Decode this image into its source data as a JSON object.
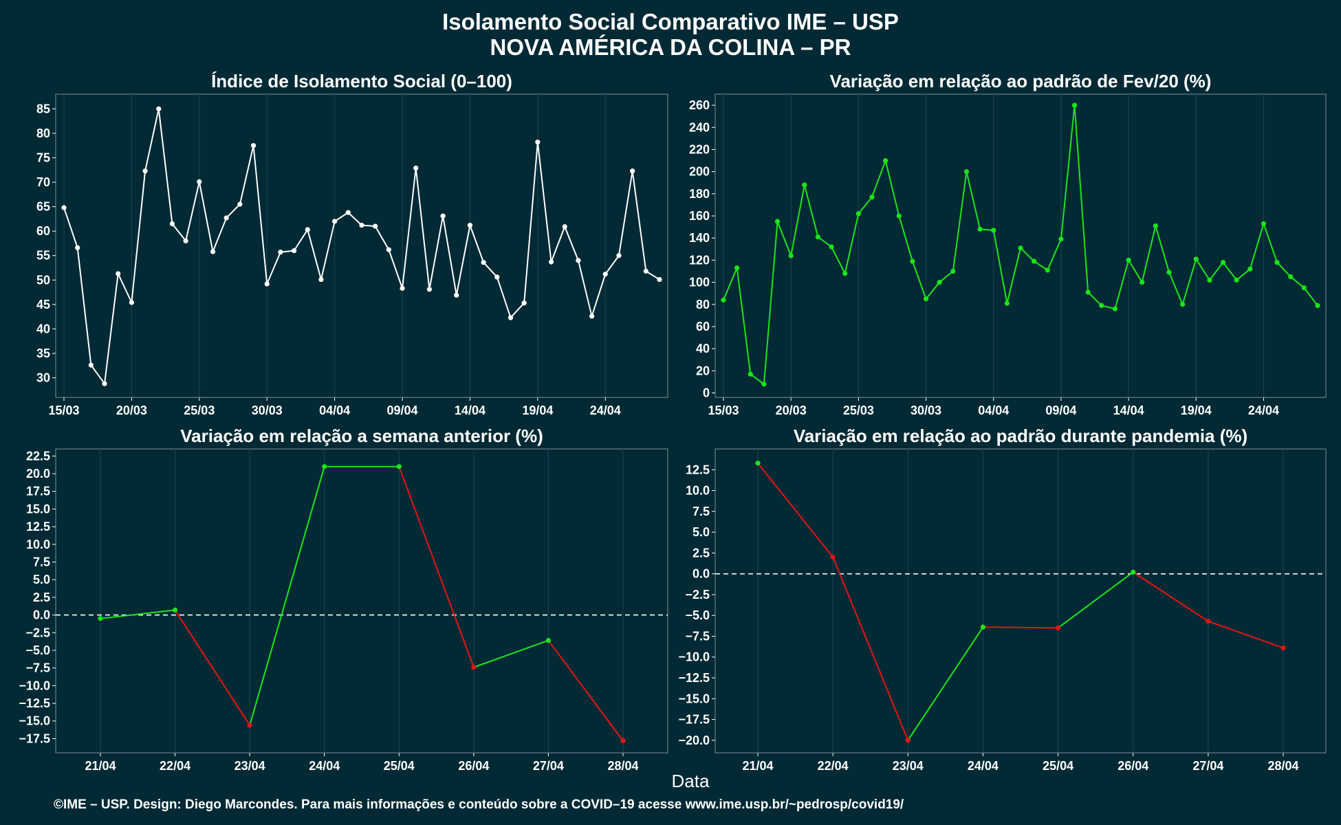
{
  "page": {
    "title_line1": "Isolamento Social Comparativo IME – USP",
    "title_line2": "NOVA AMÉRICA DA COLINA – PR",
    "x_axis_label": "Data",
    "footer": "©IME – USP. Design: Diego Marcondes. Para mais informações e conteúdo sobre a COVID–19 acesse www.ime.usp.br/~pedrosp/covid19/"
  },
  "colors": {
    "background": "#022a35",
    "panel": "#022a35",
    "panel_border": "#6a7f86",
    "grid": "#16414b",
    "white_series": "#ffffff",
    "green_series": "#19e619",
    "red_series": "#e61414",
    "zero_line": "#ffffff"
  },
  "chart_data": [
    {
      "id": "isolamento",
      "type": "line",
      "title": "Índice de Isolamento Social (0–100)",
      "x": [
        "15/03",
        "16/03",
        "17/03",
        "18/03",
        "19/03",
        "20/03",
        "21/03",
        "22/03",
        "23/03",
        "24/03",
        "25/03",
        "26/03",
        "27/03",
        "28/03",
        "29/03",
        "30/03",
        "31/03",
        "01/04",
        "02/04",
        "03/04",
        "04/04",
        "05/04",
        "06/04",
        "07/04",
        "08/04",
        "09/04",
        "10/04",
        "11/04",
        "12/04",
        "13/04",
        "14/04",
        "15/04",
        "16/04",
        "17/04",
        "18/04",
        "19/04",
        "20/04",
        "21/04",
        "22/04",
        "23/04",
        "24/04",
        "25/04",
        "26/04",
        "27/04",
        "28/04"
      ],
      "x_ticks": [
        "15/03",
        "20/03",
        "25/03",
        "30/03",
        "04/04",
        "09/04",
        "14/04",
        "19/04",
        "24/04"
      ],
      "series": [
        {
          "color": "white",
          "values": [
            64.8,
            56.6,
            32.6,
            28.8,
            51.3,
            45.4,
            72.3,
            85.0,
            61.5,
            58.0,
            70.1,
            55.8,
            62.7,
            65.5,
            77.5,
            49.2,
            55.7,
            56.0,
            60.3,
            50.1,
            62.0,
            63.8,
            61.2,
            61.0,
            56.2,
            48.3,
            72.9,
            48.1,
            63.1,
            46.9,
            61.2,
            53.6,
            50.6,
            42.3,
            45.3,
            78.2,
            53.7,
            60.9,
            54.0,
            42.6,
            51.2,
            55.0,
            72.3,
            51.8,
            50.1
          ]
        }
      ],
      "ylim": [
        26,
        88
      ],
      "y_ticks": [
        30,
        35,
        40,
        45,
        50,
        55,
        60,
        65,
        70,
        75,
        80,
        85
      ],
      "grid": "vertical"
    },
    {
      "id": "fev20",
      "type": "line",
      "title": "Variação em relação ao padrão de Fev/20 (%)",
      "x": [
        "15/03",
        "16/03",
        "17/03",
        "18/03",
        "19/03",
        "20/03",
        "21/03",
        "22/03",
        "23/03",
        "24/03",
        "25/03",
        "26/03",
        "27/03",
        "28/03",
        "29/03",
        "30/03",
        "31/03",
        "01/04",
        "02/04",
        "03/04",
        "04/04",
        "05/04",
        "06/04",
        "07/04",
        "08/04",
        "09/04",
        "10/04",
        "11/04",
        "12/04",
        "13/04",
        "14/04",
        "15/04",
        "16/04",
        "17/04",
        "18/04",
        "19/04",
        "20/04",
        "21/04",
        "22/04",
        "23/04",
        "24/04",
        "25/04",
        "26/04",
        "27/04",
        "28/04"
      ],
      "x_ticks": [
        "15/03",
        "20/03",
        "25/03",
        "30/03",
        "04/04",
        "09/04",
        "14/04",
        "19/04",
        "24/04"
      ],
      "series": [
        {
          "color": "green",
          "values": [
            84,
            113,
            17,
            8,
            155,
            124,
            188,
            141,
            132,
            108,
            162,
            177,
            210,
            160,
            119,
            85,
            100,
            110,
            200,
            148,
            147,
            81,
            131,
            119,
            111,
            139,
            260,
            91,
            79,
            76,
            120,
            100,
            151,
            109,
            80,
            121,
            102,
            118,
            102,
            112,
            153,
            118,
            105,
            95,
            79
          ]
        }
      ],
      "ylim": [
        -4,
        270
      ],
      "y_ticks": [
        0,
        20,
        40,
        60,
        80,
        100,
        120,
        140,
        160,
        180,
        200,
        220,
        240,
        260
      ],
      "grid": "vertical"
    },
    {
      "id": "semana",
      "type": "line",
      "title": "Variação em relação a semana anterior (%)",
      "x": [
        "21/04",
        "22/04",
        "23/04",
        "24/04",
        "25/04",
        "26/04",
        "27/04",
        "28/04"
      ],
      "x_ticks": [
        "21/04",
        "22/04",
        "23/04",
        "24/04",
        "25/04",
        "26/04",
        "27/04",
        "28/04"
      ],
      "series": [
        {
          "color": "green_red",
          "values": [
            -0.5,
            0.7,
            -15.6,
            21.0,
            21.0,
            -7.4,
            -3.6,
            -17.8
          ]
        }
      ],
      "ylim": [
        -19.5,
        23.5
      ],
      "y_ticks": [
        -17.5,
        -15,
        -12.5,
        -10,
        -7.5,
        -5,
        -2.5,
        0,
        2.5,
        5,
        7.5,
        10,
        12.5,
        15,
        17.5,
        20,
        22.5
      ],
      "y_tick_labels": [
        "−17.5",
        "−15.0",
        "−12.5",
        "−10.0",
        "−7.5",
        "−5.0",
        "−2.5",
        "0.0",
        "2.5",
        "5.0",
        "7.5",
        "10.0",
        "12.5",
        "15.0",
        "17.5",
        "20.0",
        "22.5"
      ],
      "zero_line": true,
      "grid": "vertical"
    },
    {
      "id": "pandemia",
      "type": "line",
      "title": "Variação em relação ao padrão durante pandemia (%)",
      "x": [
        "21/04",
        "22/04",
        "23/04",
        "24/04",
        "25/04",
        "26/04",
        "27/04",
        "28/04"
      ],
      "x_ticks": [
        "21/04",
        "22/04",
        "23/04",
        "24/04",
        "25/04",
        "26/04",
        "27/04",
        "28/04"
      ],
      "series": [
        {
          "color": "green_red",
          "values": [
            13.3,
            2.0,
            -20.0,
            -6.4,
            -6.5,
            0.2,
            -5.7,
            -8.9
          ]
        }
      ],
      "ylim": [
        -21.5,
        15.0
      ],
      "y_ticks": [
        -20,
        -17.5,
        -15,
        -12.5,
        -10,
        -7.5,
        -5,
        -2.5,
        0,
        2.5,
        5,
        7.5,
        10,
        12.5
      ],
      "y_tick_labels": [
        "−20.0",
        "−17.5",
        "−15.0",
        "−12.5",
        "−10.0",
        "−7.5",
        "−5.0",
        "−2.5",
        "0.0",
        "2.5",
        "5.0",
        "7.5",
        "10.0",
        "12.5"
      ],
      "zero_line": true,
      "grid": "vertical"
    }
  ]
}
